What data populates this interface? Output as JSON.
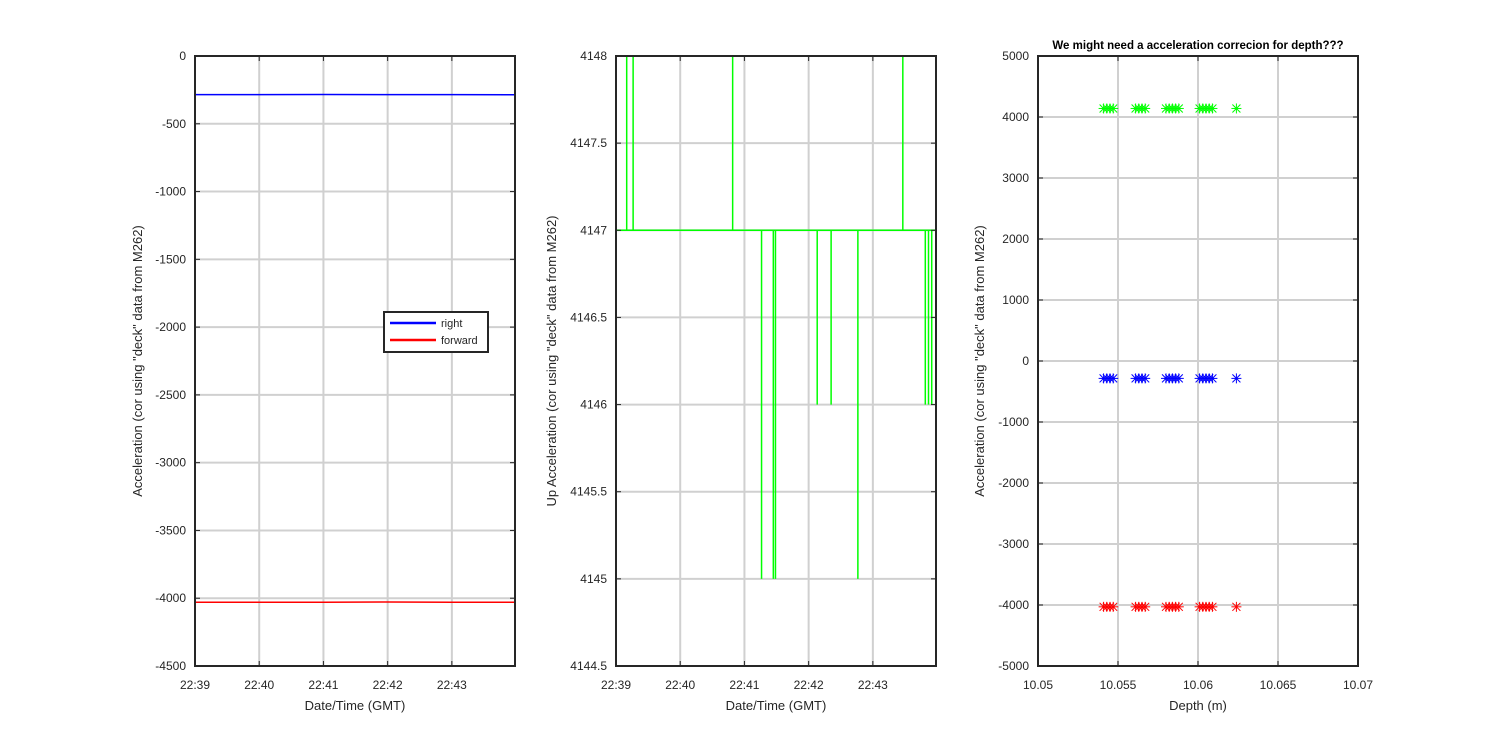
{
  "colors": {
    "background": "#ffffff",
    "axes": "#262626",
    "grid": "#d0d0d0",
    "right": "#0000ff",
    "forward": "#ff0000",
    "up": "#00ff00"
  },
  "chart_data": [
    {
      "type": "line",
      "title": "",
      "xlabel": "Date/Time (GMT)",
      "ylabel": "Acceleration (cor using \"deck\" data from M262)",
      "xlim": [
        "22:39",
        "22:43:59"
      ],
      "ylim": [
        -4500,
        0
      ],
      "x_ticks": [
        "22:39",
        "22:40",
        "22:41",
        "22:42",
        "22:43"
      ],
      "y_ticks": [
        0,
        -500,
        -1000,
        -1500,
        -2000,
        -2500,
        -3000,
        -3500,
        -4000,
        -4500
      ],
      "grid": true,
      "legend": {
        "position": "center-right",
        "entries": [
          "right",
          "forward"
        ]
      },
      "series": [
        {
          "name": "right",
          "color": "blue",
          "x": [
            "22:39",
            "22:40",
            "22:41",
            "22:42",
            "22:43",
            "22:43:59"
          ],
          "values": [
            -285,
            -285,
            -284,
            -285,
            -285,
            -286
          ]
        },
        {
          "name": "forward",
          "color": "red",
          "x": [
            "22:39",
            "22:40",
            "22:41",
            "22:42",
            "22:43",
            "22:43:59"
          ],
          "values": [
            -4030,
            -4029,
            -4029,
            -4028,
            -4029,
            -4029
          ]
        }
      ]
    },
    {
      "type": "line",
      "title": "",
      "xlabel": "Date/Time (GMT)",
      "ylabel": "Up Acceleration (cor using \"deck\" data from M262)",
      "xlim": [
        "22:39",
        "22:43:59"
      ],
      "ylim": [
        4144.5,
        4148
      ],
      "x_ticks": [
        "22:39",
        "22:40",
        "22:41",
        "22:42",
        "22:43"
      ],
      "y_ticks": [
        4148,
        4147.5,
        4147,
        4146.5,
        4146,
        4145.5,
        4145,
        4144.5
      ],
      "grid": true,
      "series": [
        {
          "color": "green",
          "baseline": 4147,
          "spikes": [
            {
              "t": "22:39:10",
              "value": 4148
            },
            {
              "t": "22:39:16",
              "value": 4148
            },
            {
              "t": "22:40:49",
              "value": 4148
            },
            {
              "t": "22:41:16",
              "value": 4145
            },
            {
              "t": "22:41:27",
              "value": 4145
            },
            {
              "t": "22:41:29",
              "value": 4145
            },
            {
              "t": "22:42:08",
              "value": 4146
            },
            {
              "t": "22:42:21",
              "value": 4146
            },
            {
              "t": "22:42:46",
              "value": 4145
            },
            {
              "t": "22:43:28",
              "value": 4148
            },
            {
              "t": "22:43:49",
              "value": 4146
            },
            {
              "t": "22:43:52",
              "value": 4146
            },
            {
              "t": "22:43:55",
              "value": 4146
            }
          ]
        }
      ]
    },
    {
      "type": "scatter",
      "title": "We might need a acceleration correcion for depth???",
      "xlabel": "Depth (m)",
      "ylabel": "Acceleration (cor using \"deck\" data from M262)",
      "xlim": [
        10.05,
        10.07
      ],
      "ylim": [
        -5000,
        5000
      ],
      "x_ticks": [
        "10.05",
        "10.055",
        "10.06",
        "10.065",
        "10.07"
      ],
      "y_ticks": [
        5000,
        4000,
        3000,
        2000,
        1000,
        0,
        -1000,
        -2000,
        -3000,
        -4000,
        -5000
      ],
      "grid": true,
      "marker": "*",
      "depths": [
        10.0541,
        10.0543,
        10.0545,
        10.0547,
        10.0561,
        10.0563,
        10.0565,
        10.0567,
        10.058,
        10.0582,
        10.0584,
        10.0586,
        10.0588,
        10.0601,
        10.0603,
        10.0605,
        10.0607,
        10.0609,
        10.0624
      ],
      "series": [
        {
          "color": "green",
          "values": [
            4140,
            4140,
            4140,
            4140,
            4140,
            4140,
            4140,
            4140,
            4140,
            4140,
            4140,
            4140,
            4140,
            4140,
            4140,
            4140,
            4140,
            4140,
            4140
          ]
        },
        {
          "color": "blue",
          "values": [
            -285,
            -285,
            -285,
            -285,
            -285,
            -285,
            -285,
            -285,
            -285,
            -285,
            -285,
            -285,
            -285,
            -285,
            -285,
            -285,
            -285,
            -285,
            -285
          ]
        },
        {
          "color": "red",
          "values": [
            -4030,
            -4030,
            -4030,
            -4030,
            -4030,
            -4030,
            -4030,
            -4030,
            -4030,
            -4030,
            -4030,
            -4030,
            -4030,
            -4030,
            -4030,
            -4030,
            -4030,
            -4030,
            -4030
          ]
        }
      ]
    }
  ]
}
